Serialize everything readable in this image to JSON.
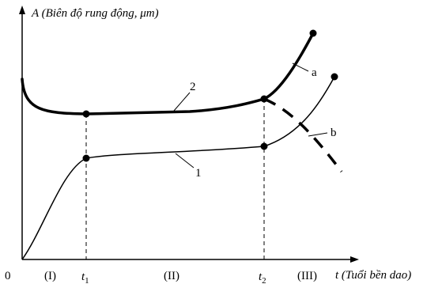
{
  "diagram": {
    "y_axis_label": "A (Biên độ rung động, μm)",
    "x_axis_label": "t (Tuổi bền dao)",
    "origin_label": "0",
    "regions": [
      "(I)",
      "(II)",
      "(III)"
    ],
    "tick_labels": [
      {
        "base": "t",
        "sub": "1"
      },
      {
        "base": "t",
        "sub": "2"
      }
    ],
    "curve_labels": {
      "upper_curve": "2",
      "lower_curve": "1",
      "branch_a": "a",
      "branch_b": "b"
    }
  }
}
